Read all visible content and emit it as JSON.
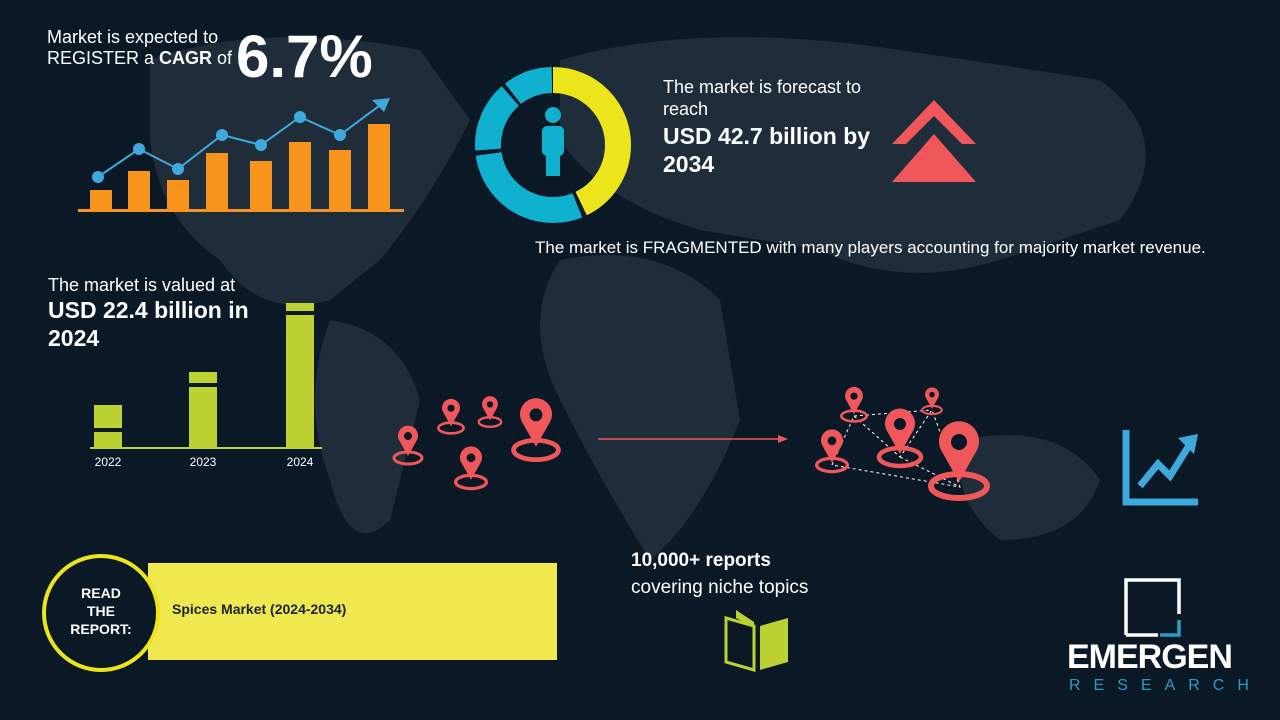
{
  "cagr": {
    "line1": "Market is expected to",
    "line2_prefix": "REGISTER a ",
    "line2_bold": "CAGR",
    "line2_suffix": " of",
    "value": "6.7%"
  },
  "forecast": {
    "line1": "The market is forecast to",
    "line2": "reach",
    "value_line1": "USD 42.7 billion by",
    "value_line2": "2034"
  },
  "fragmented": {
    "text": "The market is FRAGMENTED with many players accounting for majority market revenue."
  },
  "valued": {
    "line1": "The market is valued at",
    "value_line1": "USD 22.4 billion in",
    "value_line2": "2024"
  },
  "chart_data": {
    "type": "bar",
    "categories": [
      "2022",
      "2023",
      "2024"
    ]
  },
  "reports": {
    "line1": "10,000+ reports",
    "line2": "covering niche topics"
  },
  "read_report": {
    "line1": "READ",
    "line2": "THE",
    "line3": "REPORT:",
    "title": "Spices Market (2024-2034)"
  },
  "logo": {
    "name": "EMERGEN",
    "sub": "RESEARCH"
  },
  "colors": {
    "background": "#0b1826",
    "orange": "#f7941d",
    "blue": "#3fa9dc",
    "yellow": "#ece51c",
    "green": "#bcd232",
    "red": "#f0575a",
    "banner": "#f0e84f"
  }
}
